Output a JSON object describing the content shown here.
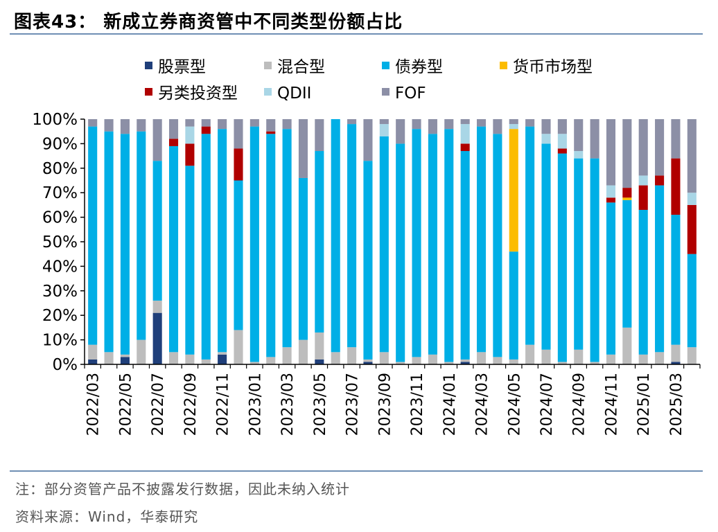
{
  "title": "图表43： 新成立券商资管中不同类型份额占比",
  "notes": {
    "note": "注：部分资管产品不披露发行数据，因此未纳入统计",
    "source": "资料来源：Wind，华泰研究"
  },
  "chart_data": {
    "type": "bar",
    "stacked": true,
    "ylim": [
      0,
      100
    ],
    "yticks": [
      "0%",
      "10%",
      "20%",
      "30%",
      "40%",
      "50%",
      "60%",
      "70%",
      "80%",
      "90%",
      "100%"
    ],
    "legend_position": "top",
    "grid": false,
    "categories": [
      "2022/03",
      "2022/04",
      "2022/05",
      "2022/06",
      "2022/07",
      "2022/08",
      "2022/09",
      "2022/10",
      "2022/11",
      "2022/12",
      "2023/01",
      "2023/02",
      "2023/03",
      "2023/04",
      "2023/05",
      "2023/06",
      "2023/07",
      "2023/08",
      "2023/09",
      "2023/10",
      "2023/11",
      "2023/12",
      "2024/01",
      "2024/02",
      "2024/03",
      "2024/04",
      "2024/05",
      "2024/06",
      "2024/07",
      "2024/08",
      "2024/09",
      "2024/10",
      "2024/11",
      "2024/12",
      "2025/01",
      "2025/02",
      "2025/03",
      "2025/04"
    ],
    "xtick_labels": [
      "2022/03",
      "2022/05",
      "2022/07",
      "2022/09",
      "2022/11",
      "2023/01",
      "2023/03",
      "2023/05",
      "2023/07",
      "2023/09",
      "2023/11",
      "2024/01",
      "2024/03",
      "2024/05",
      "2024/07",
      "2024/09",
      "2024/11",
      "2025/01",
      "2025/03"
    ],
    "series": [
      {
        "name": "股票型",
        "color": "#1f3f7a",
        "values": [
          2,
          0,
          3,
          0,
          21,
          0,
          0,
          0,
          4,
          0,
          0,
          0,
          0,
          0,
          2,
          0,
          0,
          1,
          0,
          0,
          0,
          0,
          0,
          1,
          0,
          0,
          0,
          0,
          0,
          0,
          0,
          0,
          0,
          0,
          0,
          0,
          1,
          0
        ]
      },
      {
        "name": "混合型",
        "color": "#bdbdbd",
        "values": [
          6,
          5,
          1,
          10,
          5,
          5,
          4,
          2,
          1,
          14,
          1,
          3,
          7,
          10,
          11,
          5,
          7,
          1,
          5,
          1,
          3,
          4,
          1,
          1,
          5,
          3,
          2,
          8,
          6,
          1,
          6,
          1,
          4,
          15,
          4,
          5,
          7,
          7
        ]
      },
      {
        "name": "债券型",
        "color": "#00afe6",
        "values": [
          89,
          90,
          90,
          85,
          57,
          84,
          77,
          92,
          91,
          61,
          96,
          91,
          89,
          66,
          74,
          95,
          91,
          81,
          88,
          89,
          93,
          90,
          95,
          85,
          92,
          91,
          44,
          89,
          84,
          85,
          78,
          83,
          62,
          52,
          59,
          68,
          53,
          38
        ]
      },
      {
        "name": "货币市场型",
        "color": "#fcbc00",
        "values": [
          0,
          0,
          0,
          0,
          0,
          0,
          0,
          0,
          0,
          0,
          0,
          0,
          0,
          0,
          0,
          0,
          0,
          0,
          0,
          0,
          0,
          0,
          0,
          0,
          0,
          0,
          50,
          0,
          0,
          0,
          0,
          0,
          0,
          1,
          0,
          0,
          0,
          0
        ]
      },
      {
        "name": "另类投资型",
        "color": "#b00000",
        "values": [
          0,
          0,
          0,
          0,
          0,
          3,
          9,
          3,
          0,
          13,
          0,
          1,
          0,
          0,
          0,
          0,
          0,
          0,
          0,
          0,
          0,
          0,
          0,
          3,
          0,
          0,
          0,
          0,
          0,
          2,
          0,
          0,
          2,
          4,
          10,
          4,
          23,
          20
        ]
      },
      {
        "name": "QDII",
        "color": "#a9d6e6",
        "values": [
          0,
          0,
          0,
          0,
          0,
          0,
          7,
          0,
          0,
          0,
          0,
          0,
          0,
          0,
          0,
          0,
          0,
          0,
          5,
          0,
          0,
          0,
          0,
          8,
          0,
          0,
          2,
          0,
          4,
          6,
          3,
          0,
          5,
          0,
          4,
          0,
          0,
          5
        ]
      },
      {
        "name": "FOF",
        "color": "#8c8fa6",
        "values": [
          3,
          5,
          6,
          5,
          17,
          8,
          3,
          3,
          4,
          12,
          3,
          5,
          4,
          24,
          13,
          0,
          2,
          17,
          2,
          10,
          4,
          6,
          4,
          2,
          3,
          6,
          2,
          3,
          6,
          6,
          13,
          16,
          27,
          28,
          23,
          23,
          16,
          30
        ]
      }
    ]
  }
}
